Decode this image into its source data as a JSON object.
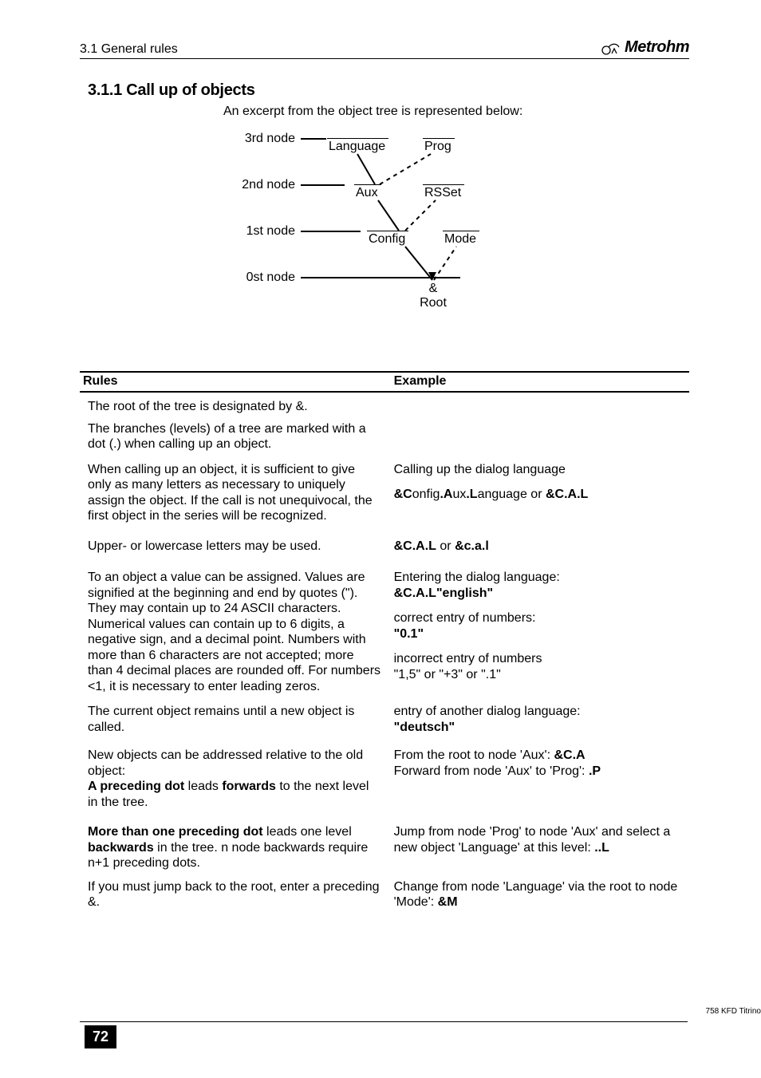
{
  "header": {
    "section_ref": "3.1 General rules",
    "brand": "Metrohm"
  },
  "section": {
    "number_title": "3.1.1  Call up of objects",
    "intro": "An excerpt from the object tree is represented below:"
  },
  "diagram": {
    "levels": {
      "l3": "3rd node",
      "l2": "2nd node",
      "l1": "1st node",
      "l0": "0st node"
    },
    "nodes": {
      "language": "Language",
      "prog": "Prog",
      "aux": "Aux",
      "rsset": "RSSet",
      "config": "Config",
      "mode": "Mode",
      "root_amp": "&",
      "root": "Root"
    }
  },
  "table": {
    "head_rules": "Rules",
    "head_example": "Example",
    "rows": [
      {
        "rules": "The root of the tree is designated by &.",
        "example_html": ""
      },
      {
        "rules": "The branches (levels) of a tree are marked with a dot (.) when calling up an object.",
        "example_html": ""
      },
      {
        "rules": "When calling up an object, it is sufficient to give only as many letters as necessary to uniquely assign the object. If the call is not unequivocal, the first object in the series will be recognized.",
        "example_lines": [
          "Calling up the dialog language",
          "<span class='b'>&amp;C</span>onfig<span class='b'>.A</span>ux<span class='b'>.L</span>anguage or <span class='b'>&amp;C.A.L</span>"
        ]
      },
      {
        "rules": "Upper- or lowercase letters may be used.",
        "example_lines": [
          "<span class='b'>&amp;C.A.L</span> or <span class='b'>&amp;c.a.l</span>"
        ]
      },
      {
        "rules_html": "To an object a value can be assigned. Values are signified at the beginning and end by quotes (\"). They may contain up to 24 ASCII characters.<br>Numerical values can contain up to 6 digits, a negative sign, and a decimal point. Numbers with more than 6 characters are not accepted; more than 4 decimal places are rounded off. For numbers &lt;1, it is necessary to enter leading zeros.",
        "example_lines": [
          "Entering the dialog language:<br><span class='b'>&amp;C.A.L\"english\"</span>",
          "correct entry of numbers:<br><span class='b'>\"0.1\"</span>",
          "incorrect entry of numbers<br>\"1,5\" or \"+3\" or \".1\""
        ]
      },
      {
        "rules": "The current object remains until a new object is called.",
        "example_lines": [
          "entry of another dialog language:<br><span class='b'>\"deutsch\"</span>"
        ]
      },
      {
        "rules_html": "New objects can be addressed relative to the old object:<br><span class='b'>A preceding dot</span> leads <span class='b'>forwards</span> to the next level in the tree.",
        "example_lines": [
          "From the root to node 'Aux': <span class='b'>&amp;C.A</span><br>Forward from node 'Aux' to 'Prog': <span class='b'>.P</span>"
        ]
      },
      {
        "rules_html": "<span class='b'>More than one preceding dot</span> leads one level <span class='b'>backwards</span> in the tree. n node backwards require n+1 preceding dots.",
        "example_lines": [
          "Jump from node 'Prog' to node 'Aux' and select a new object 'Language' at this level: <span class='b'>..L</span>"
        ]
      },
      {
        "rules": "If you must jump back to the root, enter a preceding &.",
        "example_lines": [
          "Change from node 'Language' via the root to node 'Mode': <span class='b'>&amp;M</span>"
        ]
      }
    ]
  },
  "footer": {
    "page": "72",
    "model": "758 KFD Titrino"
  },
  "colors": {
    "text": "#000000",
    "bg": "#ffffff"
  }
}
